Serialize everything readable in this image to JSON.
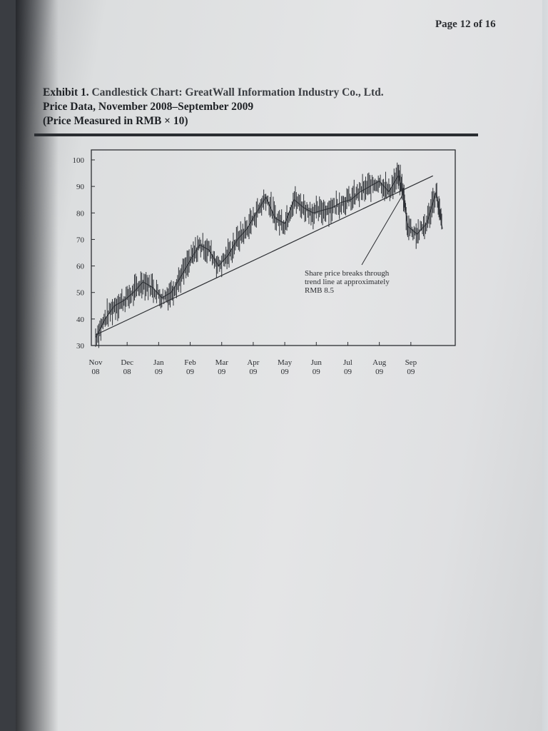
{
  "page": {
    "number_label": "Page 12 of 16"
  },
  "exhibit": {
    "line1_prefix": "Exhibit 1.",
    "line1_main": "Candlestick Chart: GreatWall Information Industry Co., Ltd.",
    "line2": "Price Data, November 2008–September 2009",
    "line3": "(Price Measured in RMB × 10)"
  },
  "chart_data": {
    "type": "line",
    "title": "",
    "xlabel": "",
    "ylabel": "",
    "ylim": [
      30,
      100
    ],
    "y_ticks": [
      30,
      40,
      50,
      60,
      70,
      80,
      90,
      100
    ],
    "grid": false,
    "x_ticks": [
      {
        "month": "Nov",
        "year": "08"
      },
      {
        "month": "Dec",
        "year": "08"
      },
      {
        "month": "Jan",
        "year": "09"
      },
      {
        "month": "Feb",
        "year": "09"
      },
      {
        "month": "Mar",
        "year": "09"
      },
      {
        "month": "Apr",
        "year": "09"
      },
      {
        "month": "May",
        "year": "09"
      },
      {
        "month": "Jun",
        "year": "09"
      },
      {
        "month": "Jul",
        "year": "09"
      },
      {
        "month": "Aug",
        "year": "09"
      },
      {
        "month": "Sep",
        "year": "09"
      }
    ],
    "x_range_months": [
      0,
      11
    ],
    "series": [
      {
        "x": [
          0.0,
          0.3,
          0.6,
          0.9,
          1.2,
          1.5,
          1.8,
          2.1,
          2.4,
          2.7,
          3.0,
          3.3,
          3.6,
          3.9,
          4.2,
          4.5,
          4.8,
          5.1,
          5.4,
          5.7,
          6.0,
          6.3,
          6.6,
          6.9,
          7.2,
          7.5,
          7.8,
          8.1,
          8.4,
          8.7,
          9.0,
          9.3,
          9.6,
          9.75,
          9.9,
          10.2,
          10.5,
          10.8,
          11.0
        ],
        "y": [
          33,
          40,
          45,
          47,
          50,
          54,
          52,
          48,
          50,
          56,
          62,
          68,
          66,
          60,
          64,
          70,
          74,
          80,
          86,
          78,
          76,
          85,
          82,
          80,
          81,
          82,
          84,
          85,
          88,
          90,
          92,
          88,
          94,
          88,
          75,
          72,
          76,
          88,
          74
        ]
      }
    ],
    "trend_line": {
      "x": [
        0.0,
        10.7
      ],
      "y": [
        34,
        94
      ]
    },
    "annotation": {
      "lines": [
        "Share price breaks through",
        "trend line at approximately",
        "RMB 8.5"
      ],
      "point": {
        "x": 9.75,
        "y": 87
      }
    }
  }
}
